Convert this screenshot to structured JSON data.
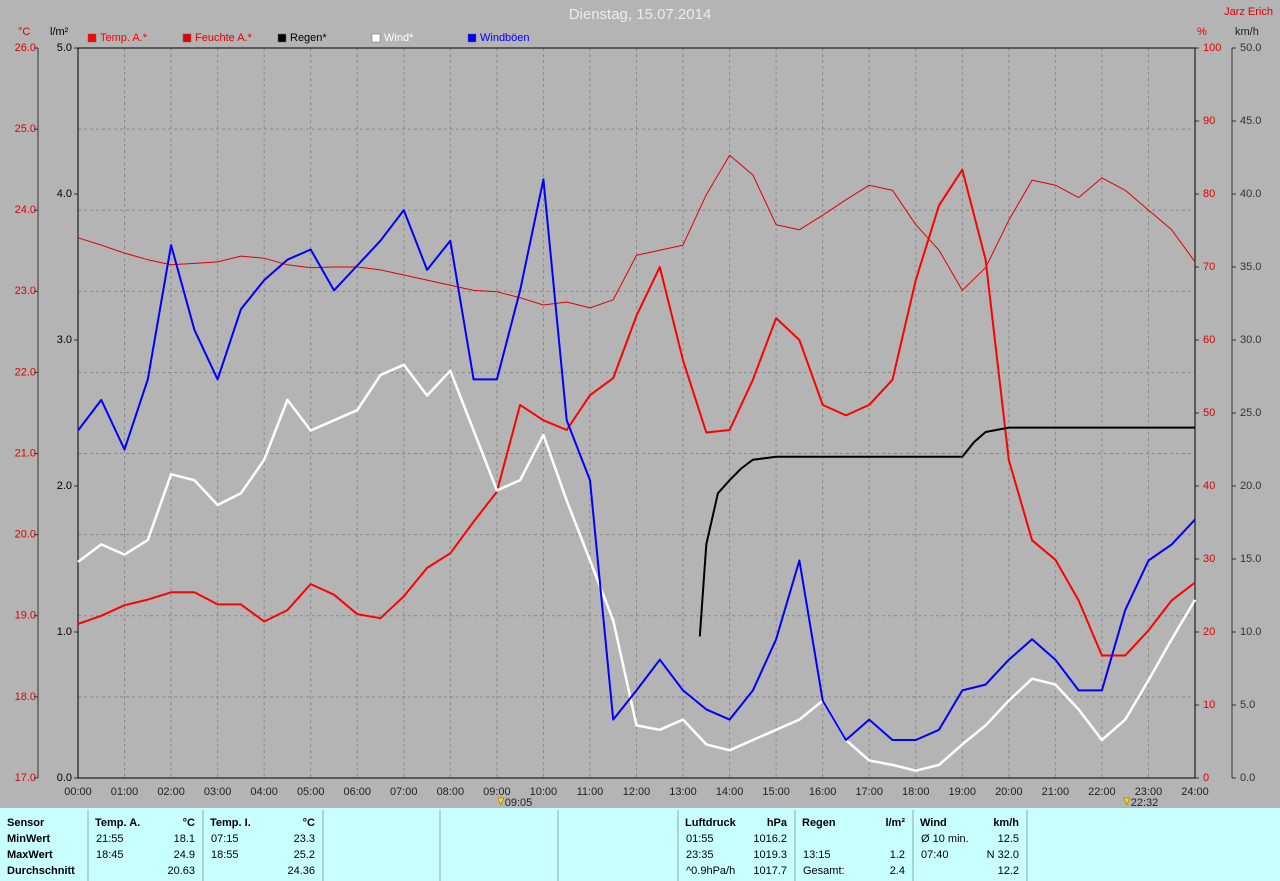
{
  "chart_data": {
    "type": "line",
    "title": "Dienstag, 15.07.2014",
    "author": "Jarz Erich",
    "x": [
      0,
      0.5,
      1,
      1.5,
      2,
      2.5,
      3,
      3.5,
      4,
      4.5,
      5,
      5.5,
      6,
      6.5,
      7,
      7.5,
      8,
      8.5,
      9,
      9.5,
      10,
      10.5,
      11,
      11.5,
      12,
      12.5,
      13,
      13.5,
      14,
      14.5,
      15,
      15.5,
      16,
      16.5,
      17,
      17.5,
      18,
      18.5,
      19,
      19.5,
      20,
      20.5,
      21,
      21.5,
      22,
      22.5,
      23,
      23.5,
      24
    ],
    "xlim": [
      0,
      24
    ],
    "xticks": [
      {
        "value": 0,
        "label": "00:00"
      },
      {
        "value": 1,
        "label": "01:00"
      },
      {
        "value": 2,
        "label": "02:00"
      },
      {
        "value": 3,
        "label": "03:00"
      },
      {
        "value": 4,
        "label": "04:00"
      },
      {
        "value": 5,
        "label": "05:00"
      },
      {
        "value": 6,
        "label": "06:00"
      },
      {
        "value": 7,
        "label": "07:00"
      },
      {
        "value": 8,
        "label": "08:00"
      },
      {
        "value": 9,
        "label": "09:00"
      },
      {
        "value": 10,
        "label": "10:00"
      },
      {
        "value": 11,
        "label": "11:00"
      },
      {
        "value": 12,
        "label": "12:00"
      },
      {
        "value": 13,
        "label": "13:00"
      },
      {
        "value": 14,
        "label": "14:00"
      },
      {
        "value": 15,
        "label": "15:00"
      },
      {
        "value": 16,
        "label": "16:00"
      },
      {
        "value": 17,
        "label": "17:00"
      },
      {
        "value": 18,
        "label": "18:00"
      },
      {
        "value": 19,
        "label": "19:00"
      },
      {
        "value": 20,
        "label": "20:00"
      },
      {
        "value": 21,
        "label": "21:00"
      },
      {
        "value": 22,
        "label": "22:00"
      },
      {
        "value": 23,
        "label": "23:00"
      },
      {
        "value": 24,
        "label": "24:00"
      }
    ],
    "ylabel": "°C",
    "ylim": [
      17,
      26
    ],
    "yticks": [
      {
        "value": 17,
        "label": "17.0"
      },
      {
        "value": 18,
        "label": "18.0"
      },
      {
        "value": 19,
        "label": "19.0"
      },
      {
        "value": 20,
        "label": "20.0"
      },
      {
        "value": 21,
        "label": "21.0"
      },
      {
        "value": 22,
        "label": "22.0"
      },
      {
        "value": 23,
        "label": "23.0"
      },
      {
        "value": 24,
        "label": "24.0"
      },
      {
        "value": 25,
        "label": "25.0"
      },
      {
        "value": 26,
        "label": "26.0"
      }
    ],
    "y2label": "l/m²",
    "y2lim": [
      0,
      5
    ],
    "y2ticks": [
      {
        "value": 0,
        "label": "0.0"
      },
      {
        "value": 1,
        "label": "1.0"
      },
      {
        "value": 2,
        "label": "2.0"
      },
      {
        "value": 3,
        "label": "3.0"
      },
      {
        "value": 4,
        "label": "4.0"
      },
      {
        "value": 5,
        "label": "5.0"
      }
    ],
    "y3label": "%",
    "y3lim": [
      0,
      100
    ],
    "y3ticks": [
      0,
      10,
      20,
      30,
      40,
      50,
      60,
      70,
      80,
      90,
      100
    ],
    "y4label": "km/h",
    "y4lim": [
      0,
      50
    ],
    "y4ticks": [
      {
        "value": 0,
        "label": "0.0"
      },
      {
        "value": 5,
        "label": "5.0"
      },
      {
        "value": 10,
        "label": "10.0"
      },
      {
        "value": 15,
        "label": "15.0"
      },
      {
        "value": 20,
        "label": "20.0"
      },
      {
        "value": 25,
        "label": "25.0"
      },
      {
        "value": 30,
        "label": "30.0"
      },
      {
        "value": 35,
        "label": "35.0"
      },
      {
        "value": 40,
        "label": "40.0"
      },
      {
        "value": 45,
        "label": "45.0"
      },
      {
        "value": 50,
        "label": "50.0"
      }
    ],
    "grid": true,
    "markers": [
      {
        "label": "09:05",
        "x": 9.0833
      },
      {
        "label": "22:32",
        "x": 22.533
      }
    ],
    "series": [
      {
        "name": "Temp. A.*",
        "color": "#ff0000",
        "axis": "y",
        "values": [
          18.9,
          19.0,
          19.13,
          19.2,
          19.29,
          19.29,
          19.14,
          19.14,
          18.93,
          19.07,
          19.39,
          19.26,
          19.02,
          18.97,
          19.24,
          19.59,
          19.77,
          20.16,
          20.53,
          21.6,
          21.41,
          21.29,
          21.72,
          21.93,
          22.7,
          23.3,
          22.15,
          21.26,
          21.29,
          21.91,
          22.67,
          22.4,
          21.6,
          21.47,
          21.6,
          21.91,
          23.14,
          24.06,
          24.5,
          23.39,
          20.92,
          19.93,
          19.69,
          19.19,
          18.51,
          18.51,
          18.82,
          19.19,
          19.41
        ]
      },
      {
        "name": "Feuchte A.*",
        "color": "#e00000",
        "axis": "y3",
        "values": [
          74,
          73,
          71.9,
          71,
          70.3,
          70.5,
          70.7,
          71.5,
          71.2,
          70.3,
          69.9,
          70,
          70,
          69.6,
          68.9,
          68.2,
          67.5,
          66.8,
          66.6,
          65.8,
          64.8,
          65.2,
          64.4,
          65.5,
          71.6,
          72.3,
          73,
          79.9,
          85.3,
          82.6,
          75.8,
          75.1,
          77.1,
          79.2,
          81.2,
          80.5,
          75.8,
          72.3,
          66.8,
          69.9,
          76.4,
          81.9,
          81.2,
          79.5,
          82.2,
          80.5,
          77.8,
          75.1,
          70.7
        ]
      },
      {
        "name": "Regen*",
        "color": "#000000",
        "axis": "y2",
        "x": [
          13.36,
          13.5,
          13.75,
          14,
          14.25,
          14.5,
          15,
          19,
          19.25,
          19.5,
          20,
          24
        ],
        "values": [
          0.97,
          1.6,
          1.95,
          2.04,
          2.12,
          2.18,
          2.2,
          2.2,
          2.3,
          2.37,
          2.4,
          2.4
        ]
      },
      {
        "name": "Wind*",
        "color": "#ffffff",
        "axis": "y4",
        "values": [
          14.8,
          16,
          15.3,
          16.3,
          20.8,
          20.4,
          18.7,
          19.5,
          21.8,
          25.9,
          23.8,
          24.5,
          25.2,
          27.6,
          28.3,
          26.2,
          27.9,
          23.8,
          19.7,
          20.4,
          23.5,
          19,
          14.9,
          10.8,
          3.6,
          3.3,
          4,
          2.3,
          1.9,
          2.6,
          3.3,
          4,
          5.3,
          2.6,
          1.2,
          0.9,
          0.5,
          0.9,
          2.3,
          3.6,
          5.3,
          6.8,
          6.4,
          4.7,
          2.6,
          4,
          6.7,
          9.5,
          12.2
        ]
      },
      {
        "name": "Windböen",
        "color": "#0000ff",
        "axis": "y4",
        "values": [
          23.8,
          25.9,
          22.5,
          27.3,
          36.5,
          30.7,
          27.3,
          32.1,
          34.1,
          35.5,
          36.2,
          33.4,
          35.1,
          36.8,
          38.9,
          34.8,
          36.8,
          27.3,
          27.3,
          33.4,
          41,
          24.5,
          20.4,
          4,
          6,
          8.1,
          6,
          4.7,
          4,
          6,
          9.5,
          14.9,
          5.3,
          2.6,
          4,
          2.6,
          2.6,
          3.3,
          6,
          6.4,
          8.1,
          9.5,
          8.1,
          6,
          6,
          11.5,
          14.9,
          16,
          17.7
        ]
      }
    ]
  },
  "table": {
    "row_labels": [
      "Sensor",
      "MinWert",
      "MaxWert",
      "Durchschnitt"
    ],
    "sections": [
      {
        "name": "Temp. A.",
        "unit": "°C",
        "rows": [
          [
            "21:55",
            "18.1"
          ],
          [
            "18:45",
            "24.9"
          ],
          [
            null,
            "20.63"
          ]
        ]
      },
      {
        "name": "Temp. I.",
        "unit": "°C",
        "rows": [
          [
            "07:15",
            "23.3"
          ],
          [
            "18:55",
            "25.2"
          ],
          [
            null,
            "24.36"
          ]
        ]
      },
      {
        "name": "Luftdruck",
        "unit": "hPa",
        "rows": [
          [
            "01:55",
            "1016.2"
          ],
          [
            "23:35",
            "1019.3"
          ],
          [
            "^0.9hPa/h",
            "1017.7"
          ]
        ]
      },
      {
        "name": "Regen",
        "unit": "l/m²",
        "rows": [
          [
            null,
            null
          ],
          [
            "13:15",
            "1.2"
          ],
          [
            "Gesamt:",
            "2.4"
          ]
        ]
      },
      {
        "name": "Wind",
        "unit": "km/h",
        "rows": [
          [
            "Ø 10 min.",
            "12.5"
          ],
          [
            "07:40",
            "N 32.0"
          ],
          [
            null,
            "12.2"
          ]
        ]
      }
    ]
  }
}
